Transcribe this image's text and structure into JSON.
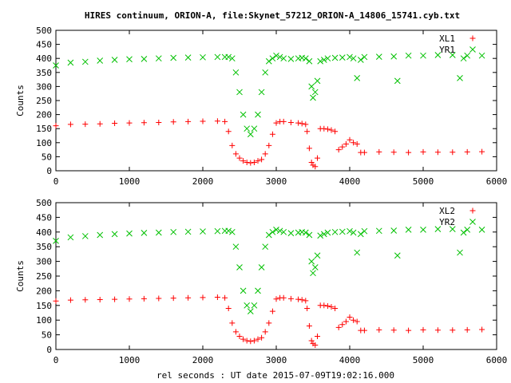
{
  "title": "HIRES continuum, ORION-A, file:Skynet_57212_ORION-A_14806_15741.cyb.txt",
  "xlabel": "rel seconds : UT date 2015-07-09T19:02:16.000",
  "colors": {
    "series_xl": "#ff0000",
    "series_yr": "#00c000",
    "axis": "#000000",
    "background": "#ffffff"
  },
  "chart_data": [
    {
      "type": "scatter",
      "ylabel": "Counts",
      "xlim": [
        0,
        6000
      ],
      "ylim": [
        0,
        500
      ],
      "x_ticks": [
        "0",
        "1000",
        "2000",
        "3000",
        "4000",
        "5000",
        "6000"
      ],
      "y_ticks": [
        "0",
        "50",
        "100",
        "150",
        "200",
        "250",
        "300",
        "350",
        "400",
        "450",
        "500"
      ],
      "grid": false,
      "legend_position": "top-right",
      "series": [
        {
          "name": "XL1",
          "marker": "plus",
          "color": "#ff0000",
          "x": [
            0,
            200,
            400,
            600,
            800,
            1000,
            1200,
            1400,
            1600,
            1800,
            2000,
            2200,
            2300,
            2350,
            2400,
            2450,
            2500,
            2550,
            2600,
            2650,
            2700,
            2750,
            2800,
            2850,
            2900,
            2950,
            3000,
            3050,
            3100,
            3200,
            3300,
            3350,
            3400,
            3420,
            3450,
            3480,
            3500,
            3530,
            3560,
            3600,
            3650,
            3700,
            3750,
            3800,
            3850,
            3900,
            3950,
            4000,
            4050,
            4100,
            4150,
            4200,
            4400,
            4600,
            4800,
            5000,
            5200,
            5400,
            5600,
            5800
          ],
          "y": [
            160,
            165,
            166,
            167,
            169,
            170,
            171,
            172,
            174,
            175,
            176,
            177,
            175,
            140,
            90,
            60,
            45,
            35,
            30,
            28,
            30,
            35,
            40,
            60,
            90,
            130,
            170,
            175,
            175,
            172,
            170,
            168,
            165,
            140,
            80,
            30,
            20,
            15,
            45,
            150,
            150,
            148,
            145,
            140,
            75,
            85,
            95,
            110,
            100,
            95,
            65,
            65,
            67,
            66,
            65,
            67,
            66,
            66,
            67,
            68
          ]
        },
        {
          "name": "YR1",
          "marker": "cross",
          "color": "#00c000",
          "x": [
            0,
            200,
            400,
            600,
            800,
            1000,
            1200,
            1400,
            1600,
            1800,
            2000,
            2200,
            2300,
            2350,
            2400,
            2450,
            2500,
            2550,
            2600,
            2650,
            2700,
            2750,
            2800,
            2850,
            2900,
            2950,
            3000,
            3050,
            3100,
            3200,
            3300,
            3350,
            3400,
            3450,
            3480,
            3500,
            3530,
            3560,
            3600,
            3650,
            3700,
            3800,
            3900,
            4000,
            4050,
            4100,
            4150,
            4200,
            4400,
            4600,
            4650,
            4800,
            5000,
            5200,
            5400,
            5500,
            5550,
            5600,
            5800
          ],
          "y": [
            375,
            385,
            388,
            392,
            395,
            397,
            398,
            400,
            402,
            403,
            404,
            405,
            405,
            405,
            400,
            350,
            280,
            200,
            150,
            130,
            150,
            200,
            280,
            350,
            390,
            400,
            410,
            405,
            400,
            398,
            400,
            402,
            400,
            390,
            300,
            260,
            280,
            320,
            390,
            395,
            400,
            402,
            403,
            405,
            400,
            330,
            395,
            405,
            406,
            407,
            320,
            410,
            410,
            412,
            412,
            330,
            400,
            410,
            410
          ]
        }
      ]
    },
    {
      "type": "scatter",
      "ylabel": "Counts",
      "xlim": [
        0,
        6000
      ],
      "ylim": [
        0,
        500
      ],
      "x_ticks": [
        "0",
        "1000",
        "2000",
        "3000",
        "4000",
        "5000",
        "6000"
      ],
      "y_ticks": [
        "0",
        "50",
        "100",
        "150",
        "200",
        "250",
        "300",
        "350",
        "400",
        "450",
        "500"
      ],
      "grid": false,
      "legend_position": "top-right",
      "series": [
        {
          "name": "XL2",
          "marker": "plus",
          "color": "#ff0000",
          "x": [
            0,
            200,
            400,
            600,
            800,
            1000,
            1200,
            1400,
            1600,
            1800,
            2000,
            2200,
            2300,
            2350,
            2400,
            2450,
            2500,
            2550,
            2600,
            2650,
            2700,
            2750,
            2800,
            2850,
            2900,
            2950,
            3000,
            3050,
            3100,
            3200,
            3300,
            3350,
            3400,
            3420,
            3450,
            3480,
            3500,
            3530,
            3560,
            3600,
            3650,
            3700,
            3750,
            3800,
            3850,
            3900,
            3950,
            4000,
            4050,
            4100,
            4150,
            4200,
            4400,
            4600,
            4800,
            5000,
            5200,
            5400,
            5600,
            5800
          ],
          "y": [
            165,
            168,
            169,
            170,
            171,
            172,
            173,
            174,
            175,
            176,
            177,
            178,
            176,
            140,
            90,
            60,
            45,
            35,
            30,
            28,
            30,
            35,
            40,
            60,
            90,
            130,
            172,
            176,
            176,
            173,
            171,
            169,
            166,
            140,
            80,
            30,
            20,
            15,
            45,
            150,
            150,
            148,
            145,
            140,
            75,
            85,
            95,
            110,
            100,
            95,
            65,
            65,
            67,
            66,
            65,
            67,
            66,
            66,
            67,
            68
          ]
        },
        {
          "name": "YR2",
          "marker": "cross",
          "color": "#00c000",
          "x": [
            0,
            200,
            400,
            600,
            800,
            1000,
            1200,
            1400,
            1600,
            1800,
            2000,
            2200,
            2300,
            2350,
            2400,
            2450,
            2500,
            2550,
            2600,
            2650,
            2700,
            2750,
            2800,
            2850,
            2900,
            2950,
            3000,
            3050,
            3100,
            3200,
            3300,
            3350,
            3400,
            3450,
            3480,
            3500,
            3530,
            3560,
            3600,
            3650,
            3700,
            3800,
            3900,
            4000,
            4050,
            4100,
            4150,
            4200,
            4400,
            4600,
            4650,
            4800,
            5000,
            5200,
            5400,
            5500,
            5550,
            5600,
            5800
          ],
          "y": [
            370,
            382,
            386,
            390,
            393,
            395,
            397,
            398,
            400,
            401,
            402,
            403,
            404,
            404,
            400,
            350,
            280,
            200,
            150,
            130,
            150,
            200,
            280,
            350,
            390,
            400,
            408,
            404,
            400,
            396,
            398,
            400,
            398,
            390,
            300,
            260,
            280,
            320,
            388,
            393,
            398,
            400,
            401,
            403,
            398,
            330,
            393,
            403,
            404,
            405,
            320,
            408,
            408,
            410,
            410,
            330,
            398,
            408,
            408
          ]
        }
      ]
    }
  ]
}
